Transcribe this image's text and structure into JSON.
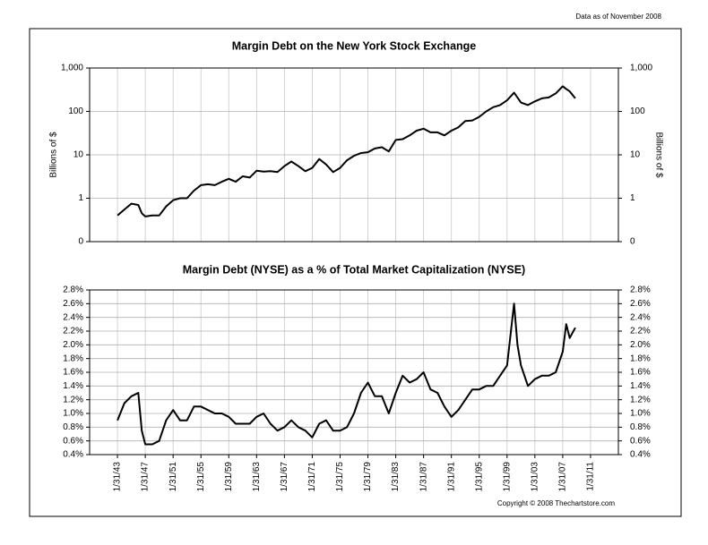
{
  "note_top": "Data as of November 2008",
  "copyright": "Copyright © 2008 Thechartstore.com",
  "chart_data": [
    {
      "type": "line",
      "title": "Margin Debt on the New York Stock Exchange",
      "ylabel": "Billions of $",
      "y2label": "Billions of $",
      "log_y": true,
      "grid": true,
      "xlim": [
        1939,
        2015
      ],
      "ylim": [
        0.1,
        1000
      ],
      "yticks": [
        {
          "value": 1000,
          "label": "1,000"
        },
        100,
        10,
        1,
        {
          "value": 0.1,
          "label": "0"
        }
      ],
      "y2lim": [
        0.1,
        1000
      ],
      "y2ticks": [
        {
          "value": 1000,
          "label": "1,000"
        },
        100,
        10,
        1,
        {
          "value": 0.1,
          "label": "0"
        }
      ],
      "x": [
        1943,
        1944,
        1945,
        1946,
        1946.5,
        1947,
        1948,
        1949,
        1950,
        1951,
        1952,
        1953,
        1954,
        1955,
        1956,
        1957,
        1958,
        1959,
        1960,
        1961,
        1962,
        1963,
        1964,
        1965,
        1966,
        1967,
        1968,
        1969,
        1970,
        1971,
        1972,
        1973,
        1974,
        1975,
        1976,
        1977,
        1978,
        1979,
        1980,
        1981,
        1982,
        1983,
        1984,
        1985,
        1986,
        1987,
        1988,
        1989,
        1990,
        1991,
        1992,
        1993,
        1994,
        1995,
        1996,
        1997,
        1998,
        1999,
        2000,
        2001,
        2002,
        2003,
        2004,
        2005,
        2006,
        2007,
        2007.5,
        2008,
        2008.8
      ],
      "series": [
        {
          "color": "#000000",
          "values": [
            0.4,
            0.55,
            0.75,
            0.7,
            0.45,
            0.38,
            0.4,
            0.4,
            0.65,
            0.9,
            1.0,
            1.0,
            1.5,
            2.0,
            2.1,
            2.0,
            2.4,
            2.8,
            2.4,
            3.2,
            3.0,
            4.3,
            4.1,
            4.2,
            4.0,
            5.5,
            7.0,
            5.5,
            4.2,
            5.0,
            8.0,
            6.0,
            4.0,
            5.0,
            7.5,
            9.5,
            11,
            11.5,
            14,
            15,
            12,
            22,
            23,
            28,
            36,
            40,
            33,
            33,
            28,
            36,
            43,
            60,
            62,
            75,
            100,
            125,
            140,
            180,
            270,
            160,
            140,
            170,
            200,
            210,
            260,
            380,
            330,
            290,
            200
          ]
        }
      ]
    },
    {
      "type": "line",
      "title": "Margin Debt (NYSE) as a % of Total Market Capitalization (NYSE)",
      "grid": true,
      "xlim": [
        1939,
        2015
      ],
      "xticks": [
        {
          "value": 1943,
          "label": "1/31/43"
        },
        {
          "value": 1947,
          "label": "1/31/47"
        },
        {
          "value": 1951,
          "label": "1/31/51"
        },
        {
          "value": 1955,
          "label": "1/31/55"
        },
        {
          "value": 1959,
          "label": "1/31/59"
        },
        {
          "value": 1963,
          "label": "1/31/63"
        },
        {
          "value": 1967,
          "label": "1/31/67"
        },
        {
          "value": 1971,
          "label": "1/31/71"
        },
        {
          "value": 1975,
          "label": "1/31/75"
        },
        {
          "value": 1979,
          "label": "1/31/79"
        },
        {
          "value": 1983,
          "label": "1/31/83"
        },
        {
          "value": 1987,
          "label": "1/31/87"
        },
        {
          "value": 1991,
          "label": "1/31/91"
        },
        {
          "value": 1995,
          "label": "1/31/95"
        },
        {
          "value": 1999,
          "label": "1/31/99"
        },
        {
          "value": 2003,
          "label": "1/31/03"
        },
        {
          "value": 2007,
          "label": "1/31/07"
        },
        {
          "value": 2011,
          "label": "1/31/11"
        }
      ],
      "ylim": [
        0.4,
        2.8
      ],
      "yticks": [
        {
          "value": 2.8,
          "label": "2.8%"
        },
        {
          "value": 2.6,
          "label": "2.6%"
        },
        {
          "value": 2.4,
          "label": "2.4%"
        },
        {
          "value": 2.2,
          "label": "2.2%"
        },
        {
          "value": 2.0,
          "label": "2.0%"
        },
        {
          "value": 1.8,
          "label": "1.8%"
        },
        {
          "value": 1.6,
          "label": "1.6%"
        },
        {
          "value": 1.4,
          "label": "1.4%"
        },
        {
          "value": 1.2,
          "label": "1.2%"
        },
        {
          "value": 1.0,
          "label": "1.0%"
        },
        {
          "value": 0.8,
          "label": "0.8%"
        },
        {
          "value": 0.6,
          "label": "0.6%"
        },
        {
          "value": 0.4,
          "label": "0.4%"
        }
      ],
      "y2lim": [
        0.4,
        2.8
      ],
      "y2ticks": [
        {
          "value": 2.8,
          "label": "2.8%"
        },
        {
          "value": 2.6,
          "label": "2.6%"
        },
        {
          "value": 2.4,
          "label": "2.4%"
        },
        {
          "value": 2.2,
          "label": "2.2%"
        },
        {
          "value": 2.0,
          "label": "2.0%"
        },
        {
          "value": 1.8,
          "label": "1.8%"
        },
        {
          "value": 1.6,
          "label": "1.6%"
        },
        {
          "value": 1.4,
          "label": "1.4%"
        },
        {
          "value": 1.2,
          "label": "1.2%"
        },
        {
          "value": 1.0,
          "label": "1.0%"
        },
        {
          "value": 0.8,
          "label": "0.8%"
        },
        {
          "value": 0.6,
          "label": "0.6%"
        },
        {
          "value": 0.4,
          "label": "0.4%"
        }
      ],
      "x": [
        1943,
        1944,
        1945,
        1946,
        1946.5,
        1947,
        1948,
        1949,
        1950,
        1951,
        1952,
        1953,
        1954,
        1955,
        1956,
        1957,
        1958,
        1959,
        1960,
        1961,
        1962,
        1963,
        1964,
        1965,
        1966,
        1967,
        1968,
        1969,
        1970,
        1971,
        1972,
        1973,
        1974,
        1975,
        1976,
        1977,
        1978,
        1979,
        1980,
        1981,
        1982,
        1983,
        1984,
        1985,
        1986,
        1987,
        1988,
        1989,
        1990,
        1991,
        1992,
        1993,
        1994,
        1995,
        1996,
        1997,
        1998,
        1999,
        2000,
        2000.5,
        2001,
        2002,
        2003,
        2004,
        2005,
        2006,
        2007,
        2007.5,
        2008,
        2008.8
      ],
      "series": [
        {
          "color": "#000000",
          "values": [
            0.9,
            1.15,
            1.25,
            1.3,
            0.75,
            0.55,
            0.55,
            0.6,
            0.9,
            1.05,
            0.9,
            0.9,
            1.1,
            1.1,
            1.05,
            1.0,
            1.0,
            0.95,
            0.85,
            0.85,
            0.85,
            0.95,
            1.0,
            0.85,
            0.75,
            0.8,
            0.9,
            0.8,
            0.75,
            0.65,
            0.85,
            0.9,
            0.75,
            0.75,
            0.8,
            1.0,
            1.3,
            1.45,
            1.25,
            1.25,
            1.0,
            1.3,
            1.55,
            1.45,
            1.5,
            1.6,
            1.35,
            1.3,
            1.1,
            0.95,
            1.05,
            1.2,
            1.35,
            1.35,
            1.4,
            1.4,
            1.55,
            1.7,
            2.6,
            2.0,
            1.7,
            1.4,
            1.5,
            1.55,
            1.55,
            1.6,
            1.9,
            2.3,
            2.1,
            2.25
          ]
        }
      ]
    }
  ]
}
